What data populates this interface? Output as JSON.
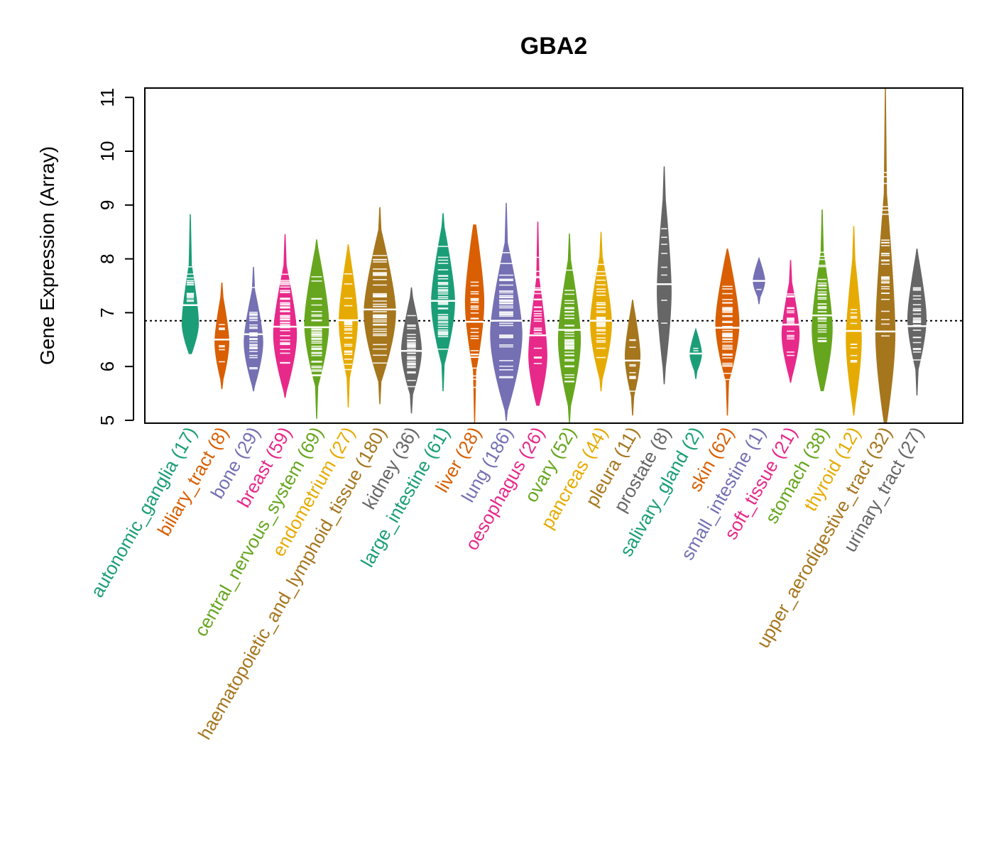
{
  "chart_data": {
    "type": "violin",
    "title": "GBA2",
    "xlabel": "",
    "ylabel": "Gene Expression (Array)",
    "ylim": [
      5,
      11.15
    ],
    "yticks": [
      5,
      6,
      7,
      8,
      9,
      10,
      11
    ],
    "reference_line": 6.85,
    "reference_line_style": "dotted",
    "grid": false,
    "categories": [
      {
        "name": "autonomic_ganglia",
        "n": 17,
        "color": "#1B9E77",
        "min": 6.24,
        "max": 8.83,
        "median": 7.14,
        "mode": 6.8
      },
      {
        "name": "biliary_tract",
        "n": 8,
        "color": "#D95F02",
        "min": 5.58,
        "max": 7.56,
        "median": 6.5,
        "mode": 6.45
      },
      {
        "name": "bone",
        "n": 29,
        "color": "#7570B3",
        "min": 5.54,
        "max": 7.85,
        "median": 6.6,
        "mode": 6.45
      },
      {
        "name": "breast",
        "n": 59,
        "color": "#E7298A",
        "min": 5.42,
        "max": 8.46,
        "median": 6.74,
        "mode": 6.6
      },
      {
        "name": "central_nervous_system",
        "n": 69,
        "color": "#66A61E",
        "min": 5.03,
        "max": 8.36,
        "median": 6.73,
        "mode": 6.8
      },
      {
        "name": "endometrium",
        "n": 27,
        "color": "#E6AB02",
        "min": 5.24,
        "max": 8.27,
        "median": 6.86,
        "mode": 6.85
      },
      {
        "name": "haematopoietic_and_lymphoid_tissue",
        "n": 180,
        "color": "#A6761D",
        "min": 5.3,
        "max": 8.96,
        "median": 7.06,
        "mode": 7.0
      },
      {
        "name": "kidney",
        "n": 36,
        "color": "#666666",
        "min": 5.13,
        "max": 7.47,
        "median": 6.29,
        "mode": 6.3
      },
      {
        "name": "large_intestine",
        "n": 61,
        "color": "#1B9E77",
        "min": 5.54,
        "max": 8.85,
        "median": 7.22,
        "mode": 7.2
      },
      {
        "name": "liver",
        "n": 28,
        "color": "#D95F02",
        "min": 4.96,
        "max": 8.63,
        "median": 6.83,
        "mode": 7.2
      },
      {
        "name": "lung",
        "n": 186,
        "color": "#7570B3",
        "min": 4.99,
        "max": 9.04,
        "median": 6.85,
        "mode": 6.6
      },
      {
        "name": "oesophagus",
        "n": 26,
        "color": "#E7298A",
        "min": 5.28,
        "max": 8.69,
        "median": 6.58,
        "mode": 6.2
      },
      {
        "name": "ovary",
        "n": 52,
        "color": "#66A61E",
        "min": 4.96,
        "max": 8.47,
        "median": 6.68,
        "mode": 6.5
      },
      {
        "name": "pancreas",
        "n": 44,
        "color": "#E6AB02",
        "min": 5.54,
        "max": 8.5,
        "median": 6.85,
        "mode": 6.8
      },
      {
        "name": "pleura",
        "n": 11,
        "color": "#A6761D",
        "min": 5.09,
        "max": 7.24,
        "median": 6.11,
        "mode": 6.2
      },
      {
        "name": "prostate",
        "n": 8,
        "color": "#666666",
        "min": 5.67,
        "max": 9.72,
        "median": 7.53,
        "mode": 7.4
      },
      {
        "name": "salivary_gland",
        "n": 2,
        "color": "#1B9E77",
        "min": 5.77,
        "max": 6.69,
        "median": 6.24,
        "mode": 6.24
      },
      {
        "name": "skin",
        "n": 62,
        "color": "#D95F02",
        "min": 5.09,
        "max": 8.19,
        "median": 6.72,
        "mode": 6.8
      },
      {
        "name": "small_intestine",
        "n": 1,
        "color": "#7570B3",
        "min": 7.16,
        "max": 8.01,
        "median": 7.59,
        "mode": 7.59
      },
      {
        "name": "soft_tissue",
        "n": 21,
        "color": "#E7298A",
        "min": 5.7,
        "max": 7.98,
        "median": 6.78,
        "mode": 6.6
      },
      {
        "name": "stomach",
        "n": 38,
        "color": "#66A61E",
        "min": 5.55,
        "max": 8.92,
        "median": 6.95,
        "mode": 6.7
      },
      {
        "name": "thyroid",
        "n": 12,
        "color": "#E6AB02",
        "min": 5.09,
        "max": 8.61,
        "median": 6.66,
        "mode": 6.5
      },
      {
        "name": "upper_aerodigestive_tract",
        "n": 32,
        "color": "#A6761D",
        "min": 4.95,
        "max": 11.17,
        "median": 6.65,
        "mode": 6.6
      },
      {
        "name": "urinary_tract",
        "n": 27,
        "color": "#666666",
        "min": 5.46,
        "max": 8.19,
        "median": 6.75,
        "mode": 6.9
      }
    ]
  }
}
